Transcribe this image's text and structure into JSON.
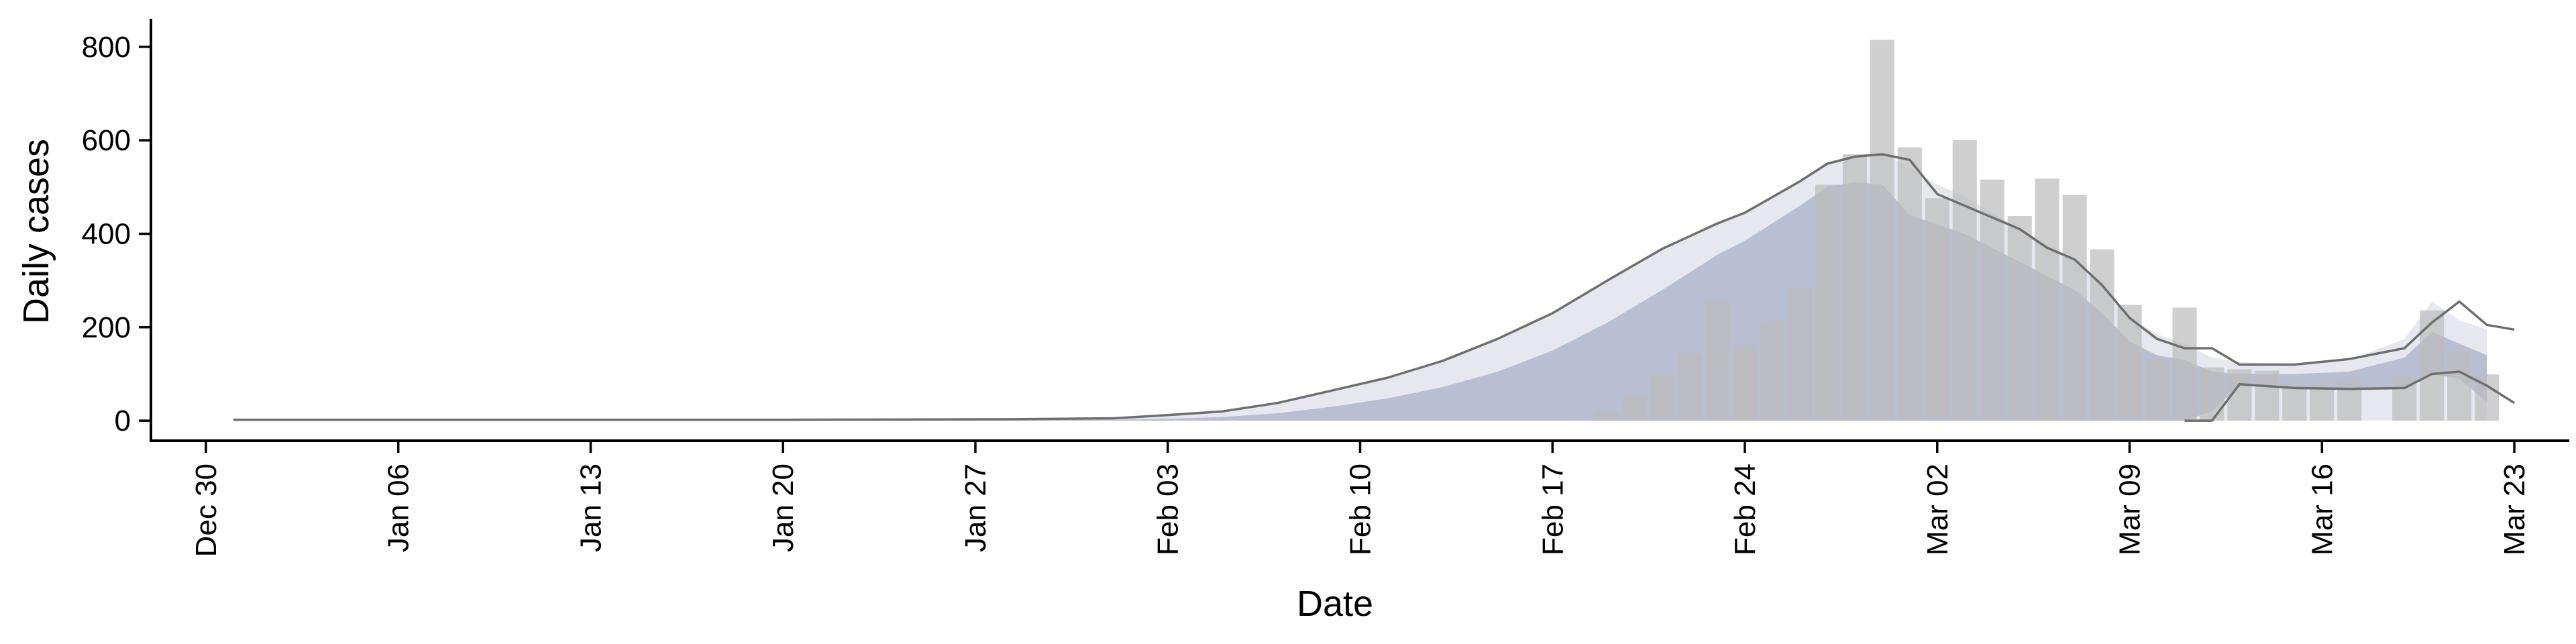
{
  "chart_data": {
    "type": "bar",
    "xlabel": "Date",
    "ylabel": "Daily cases",
    "x_range": [
      "2019-12-28",
      "2020-03-25"
    ],
    "ylim": [
      -40,
      860
    ],
    "y_ticks": [
      0,
      200,
      400,
      600,
      800
    ],
    "x_ticks": [
      {
        "date": "2019-12-30",
        "label": "Dec 30"
      },
      {
        "date": "2020-01-06",
        "label": "Jan 06"
      },
      {
        "date": "2020-01-13",
        "label": "Jan 13"
      },
      {
        "date": "2020-01-20",
        "label": "Jan 20"
      },
      {
        "date": "2020-01-27",
        "label": "Jan 27"
      },
      {
        "date": "2020-02-03",
        "label": "Feb 03"
      },
      {
        "date": "2020-02-10",
        "label": "Feb 10"
      },
      {
        "date": "2020-02-17",
        "label": "Feb 17"
      },
      {
        "date": "2020-02-24",
        "label": "Feb 24"
      },
      {
        "date": "2020-03-02",
        "label": "Mar 02"
      },
      {
        "date": "2020-03-09",
        "label": "Mar 09"
      },
      {
        "date": "2020-03-16",
        "label": "Mar 16"
      },
      {
        "date": "2020-03-23",
        "label": "Mar 23"
      }
    ],
    "grid": false,
    "colors": {
      "bars": "#bdbdbd",
      "band_inner": "#b9bfd2",
      "band_outer": "#e7e8ef",
      "line": "#6e6e6e"
    },
    "bars": [
      {
        "date": "2020-02-19",
        "value": 20
      },
      {
        "date": "2020-02-20",
        "value": 55
      },
      {
        "date": "2020-02-21",
        "value": 100
      },
      {
        "date": "2020-02-22",
        "value": 143
      },
      {
        "date": "2020-02-23",
        "value": 256
      },
      {
        "date": "2020-02-24",
        "value": 161
      },
      {
        "date": "2020-02-25",
        "value": 213
      },
      {
        "date": "2020-02-26",
        "value": 283
      },
      {
        "date": "2020-02-27",
        "value": 505
      },
      {
        "date": "2020-02-28",
        "value": 570
      },
      {
        "date": "2020-02-29",
        "value": 815
      },
      {
        "date": "2020-03-01",
        "value": 585
      },
      {
        "date": "2020-03-02",
        "value": 476
      },
      {
        "date": "2020-03-03",
        "value": 600
      },
      {
        "date": "2020-03-04",
        "value": 516
      },
      {
        "date": "2020-03-05",
        "value": 438
      },
      {
        "date": "2020-03-06",
        "value": 518
      },
      {
        "date": "2020-03-07",
        "value": 483
      },
      {
        "date": "2020-03-08",
        "value": 367
      },
      {
        "date": "2020-03-09",
        "value": 248
      },
      {
        "date": "2020-03-10",
        "value": 131
      },
      {
        "date": "2020-03-11",
        "value": 242
      },
      {
        "date": "2020-03-12",
        "value": 114
      },
      {
        "date": "2020-03-13",
        "value": 110
      },
      {
        "date": "2020-03-14",
        "value": 107
      },
      {
        "date": "2020-03-15",
        "value": 76
      },
      {
        "date": "2020-03-16",
        "value": 76
      },
      {
        "date": "2020-03-17",
        "value": 84
      },
      {
        "date": "2020-03-19",
        "value": 95
      },
      {
        "date": "2020-03-20",
        "value": 236
      },
      {
        "date": "2020-03-21",
        "value": 148
      },
      {
        "date": "2020-03-22",
        "value": 99
      }
    ],
    "estimate": [
      {
        "date": "2019-12-31",
        "inner_low": 0,
        "inner_high": 0,
        "outer_high": 2
      },
      {
        "date": "2020-01-10",
        "inner_low": 0,
        "inner_high": 0,
        "outer_high": 2
      },
      {
        "date": "2020-01-20",
        "inner_low": 0,
        "inner_high": 0,
        "outer_high": 2
      },
      {
        "date": "2020-01-28",
        "inner_low": 0,
        "inner_high": 1,
        "outer_high": 3
      },
      {
        "date": "2020-02-01",
        "inner_low": 0,
        "inner_high": 2,
        "outer_high": 5
      },
      {
        "date": "2020-02-03",
        "inner_low": 0,
        "inner_high": 4,
        "outer_high": 12
      },
      {
        "date": "2020-02-05",
        "inner_low": 0,
        "inner_high": 8,
        "outer_high": 20
      },
      {
        "date": "2020-02-07",
        "inner_low": 0,
        "inner_high": 16,
        "outer_high": 38
      },
      {
        "date": "2020-02-09",
        "inner_low": 0,
        "inner_high": 30,
        "outer_high": 65
      },
      {
        "date": "2020-02-11",
        "inner_low": 0,
        "inner_high": 48,
        "outer_high": 92
      },
      {
        "date": "2020-02-13",
        "inner_low": 0,
        "inner_high": 72,
        "outer_high": 128
      },
      {
        "date": "2020-02-15",
        "inner_low": 0,
        "inner_high": 105,
        "outer_high": 175
      },
      {
        "date": "2020-02-17",
        "inner_low": 0,
        "inner_high": 150,
        "outer_high": 230
      },
      {
        "date": "2020-02-19",
        "inner_low": 0,
        "inner_high": 210,
        "outer_high": 300
      },
      {
        "date": "2020-02-21",
        "inner_low": 0,
        "inner_high": 280,
        "outer_high": 368
      },
      {
        "date": "2020-02-23",
        "inner_low": 0,
        "inner_high": 355,
        "outer_high": 422
      },
      {
        "date": "2020-02-24",
        "inner_low": 0,
        "inner_high": 385,
        "outer_high": 445
      },
      {
        "date": "2020-02-26",
        "inner_low": 0,
        "inner_high": 460,
        "outer_high": 512
      },
      {
        "date": "2020-02-27",
        "inner_low": 0,
        "inner_high": 500,
        "outer_high": 550
      },
      {
        "date": "2020-02-28",
        "inner_low": 0,
        "inner_high": 510,
        "outer_high": 565
      },
      {
        "date": "2020-02-29",
        "inner_low": 0,
        "inner_high": 505,
        "outer_high": 575
      },
      {
        "date": "2020-03-01",
        "inner_low": 0,
        "inner_high": 440,
        "outer_high": 540
      },
      {
        "date": "2020-03-02",
        "inner_low": 0,
        "inner_high": 420,
        "outer_high": 505
      },
      {
        "date": "2020-03-03",
        "inner_low": 0,
        "inner_high": 400,
        "outer_high": 480
      },
      {
        "date": "2020-03-05",
        "inner_low": 0,
        "inner_high": 340,
        "outer_high": 410
      },
      {
        "date": "2020-03-07",
        "inner_low": 0,
        "inner_high": 280,
        "outer_high": 345
      },
      {
        "date": "2020-03-08",
        "inner_low": 0,
        "inner_high": 230,
        "outer_high": 290
      },
      {
        "date": "2020-03-09",
        "inner_low": 0,
        "inner_high": 170,
        "outer_high": 220
      },
      {
        "date": "2020-03-10",
        "inner_low": 0,
        "inner_high": 140,
        "outer_high": 185
      },
      {
        "date": "2020-03-11",
        "inner_low": 0,
        "inner_high": 130,
        "outer_high": 165
      },
      {
        "date": "2020-03-12",
        "inner_low": 20,
        "inner_high": 105,
        "outer_high": 135
      },
      {
        "date": "2020-03-13",
        "inner_low": 75,
        "inner_high": 100,
        "outer_high": 125
      },
      {
        "date": "2020-03-15",
        "inner_low": 70,
        "inner_high": 100,
        "outer_high": 122
      },
      {
        "date": "2020-03-17",
        "inner_low": 68,
        "inner_high": 105,
        "outer_high": 130
      },
      {
        "date": "2020-03-19",
        "inner_low": 70,
        "inner_high": 135,
        "outer_high": 175
      },
      {
        "date": "2020-03-20",
        "inner_low": 100,
        "inner_high": 190,
        "outer_high": 255
      },
      {
        "date": "2020-03-21",
        "inner_low": 90,
        "inner_high": 165,
        "outer_high": 215
      },
      {
        "date": "2020-03-22",
        "inner_low": 40,
        "inner_high": 140,
        "outer_high": 195
      }
    ],
    "bounds": [
      {
        "name": "upper",
        "points": [
          {
            "date": "2019-12-31",
            "value": 2
          },
          {
            "date": "2020-01-20",
            "value": 2
          },
          {
            "date": "2020-01-28",
            "value": 3
          },
          {
            "date": "2020-02-01",
            "value": 5
          },
          {
            "date": "2020-02-03",
            "value": 12
          },
          {
            "date": "2020-02-05",
            "value": 20
          },
          {
            "date": "2020-02-07",
            "value": 38
          },
          {
            "date": "2020-02-09",
            "value": 65
          },
          {
            "date": "2020-02-11",
            "value": 92
          },
          {
            "date": "2020-02-13",
            "value": 128
          },
          {
            "date": "2020-02-15",
            "value": 175
          },
          {
            "date": "2020-02-17",
            "value": 230
          },
          {
            "date": "2020-02-19",
            "value": 300
          },
          {
            "date": "2020-02-21",
            "value": 368
          },
          {
            "date": "2020-02-23",
            "value": 422
          },
          {
            "date": "2020-02-24",
            "value": 445
          },
          {
            "date": "2020-02-26",
            "value": 512
          },
          {
            "date": "2020-02-27",
            "value": 550
          },
          {
            "date": "2020-02-28",
            "value": 565
          },
          {
            "date": "2020-02-29",
            "value": 570
          },
          {
            "date": "2020-03-01",
            "value": 558
          },
          {
            "date": "2020-03-02",
            "value": 485
          },
          {
            "date": "2020-03-03",
            "value": 460
          },
          {
            "date": "2020-03-05",
            "value": 410
          },
          {
            "date": "2020-03-06",
            "value": 370
          },
          {
            "date": "2020-03-07",
            "value": 345
          },
          {
            "date": "2020-03-08",
            "value": 290
          },
          {
            "date": "2020-03-09",
            "value": 220
          },
          {
            "date": "2020-03-10",
            "value": 175
          },
          {
            "date": "2020-03-11",
            "value": 155
          },
          {
            "date": "2020-03-12",
            "value": 155
          },
          {
            "date": "2020-03-13",
            "value": 120
          },
          {
            "date": "2020-03-15",
            "value": 120
          },
          {
            "date": "2020-03-17",
            "value": 132
          },
          {
            "date": "2020-03-19",
            "value": 155
          },
          {
            "date": "2020-03-20",
            "value": 210
          },
          {
            "date": "2020-03-21",
            "value": 255
          },
          {
            "date": "2020-03-22",
            "value": 205
          },
          {
            "date": "2020-03-23",
            "value": 195
          }
        ]
      },
      {
        "name": "lower",
        "points": [
          {
            "date": "2020-03-11",
            "value": 0
          },
          {
            "date": "2020-03-12",
            "value": 0
          },
          {
            "date": "2020-03-13",
            "value": 78
          },
          {
            "date": "2020-03-15",
            "value": 70
          },
          {
            "date": "2020-03-17",
            "value": 68
          },
          {
            "date": "2020-03-19",
            "value": 70
          },
          {
            "date": "2020-03-20",
            "value": 100
          },
          {
            "date": "2020-03-21",
            "value": 105
          },
          {
            "date": "2020-03-22",
            "value": 75
          },
          {
            "date": "2020-03-23",
            "value": 38
          }
        ]
      }
    ]
  }
}
